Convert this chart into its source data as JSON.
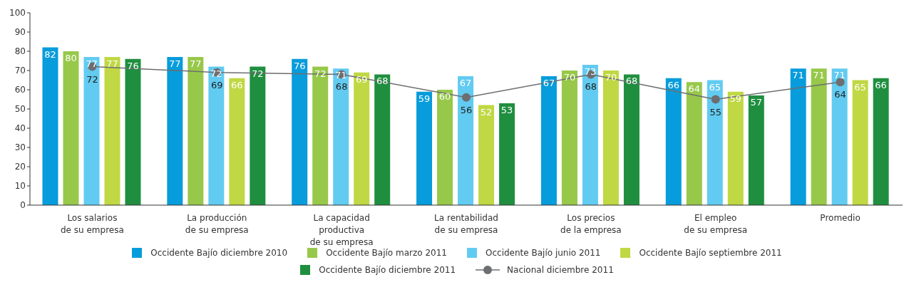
{
  "chart_data": {
    "type": "bar",
    "categories": [
      "Los salarios\nde su empresa",
      "La producción\nde su empresa",
      "La capacidad\nproductiva\nde su empresa",
      "La rentabilidad\nde su empresa",
      "Los precios\nde la empresa",
      "El empleo\nde su empresa",
      "Promedio"
    ],
    "series": [
      {
        "name": "Occidente Bajío diciembre 2010",
        "color": "#079cdb",
        "values": [
          82,
          77,
          76,
          59,
          67,
          66,
          71
        ]
      },
      {
        "name": "Occidente Bajío marzo 2011",
        "color": "#97c84a",
        "values": [
          80,
          77,
          72,
          60,
          70,
          64,
          71
        ]
      },
      {
        "name": "Occidente Bajío junio 2011",
        "color": "#62cbf1",
        "values": [
          77,
          72,
          71,
          67,
          73,
          65,
          71
        ]
      },
      {
        "name": "Occidente Bajío septiembre 2011",
        "color": "#c0d843",
        "values": [
          77,
          66,
          69,
          52,
          70,
          59,
          65
        ]
      },
      {
        "name": "Occidente Bajío diciembre 2011",
        "color": "#1f8f3f",
        "values": [
          76,
          72,
          68,
          53,
          68,
          57,
          66
        ]
      },
      {
        "name": "Nacional diciembre 2011",
        "type": "line",
        "color": "#6d6e71",
        "marker": "circle",
        "values": [
          72,
          69,
          68,
          56,
          68,
          55,
          64
        ]
      }
    ],
    "ylim": [
      0,
      100
    ],
    "yticks": [
      0,
      10,
      20,
      30,
      40,
      50,
      60,
      70,
      80,
      90,
      100
    ],
    "legend": "bottom",
    "data_labels": true
  }
}
